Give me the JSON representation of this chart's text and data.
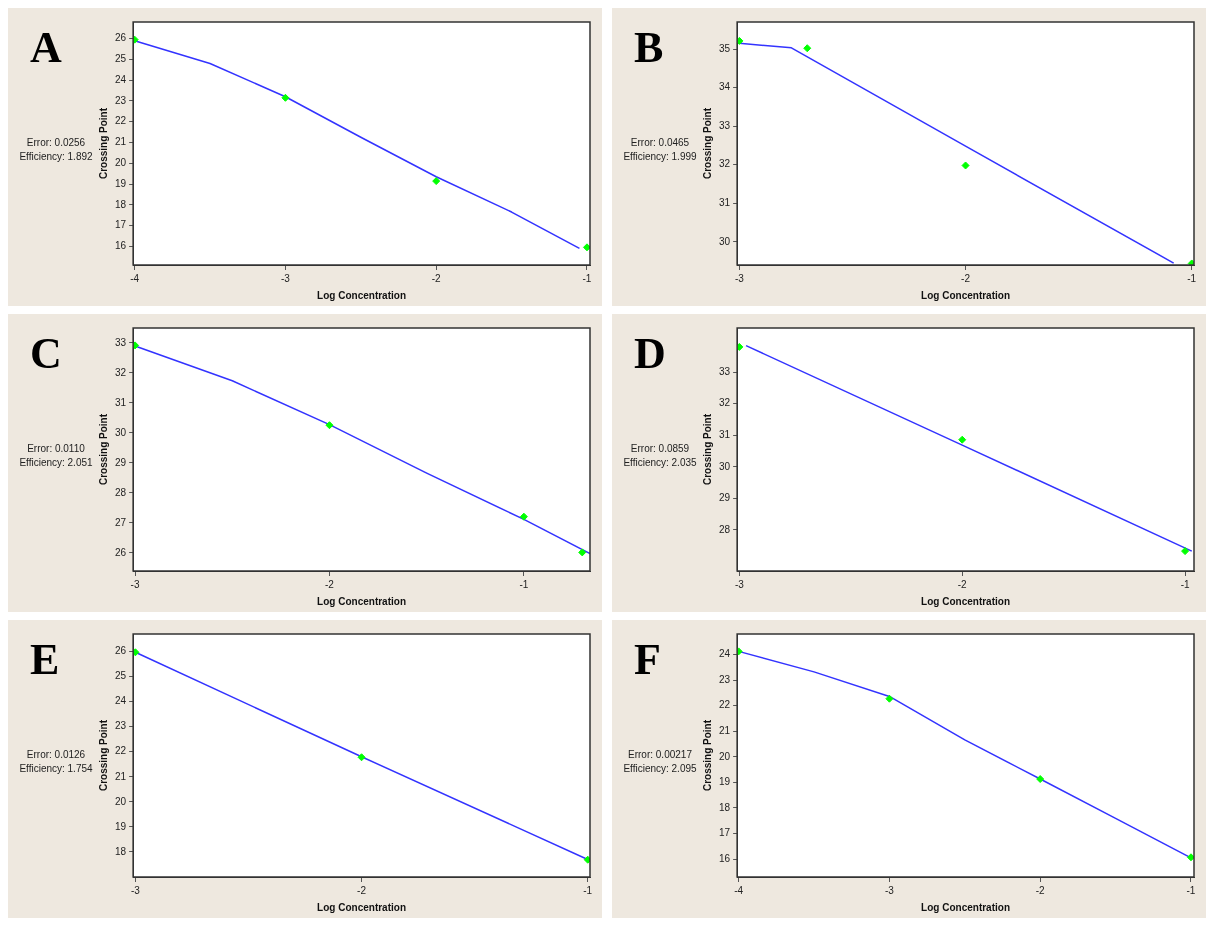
{
  "chart_data": [
    {
      "type": "scatter",
      "title": "A",
      "xlabel": "Log Concentration",
      "ylabel": "Crossing Point",
      "annotations": [
        "Error: 0.0256",
        "Efficiency: 1.892"
      ],
      "xlim": [
        -4.01,
        -0.98
      ],
      "xticks": [
        -4,
        -3,
        -2,
        -1
      ],
      "ylim": [
        15.1,
        26.8
      ],
      "yticks": [
        16,
        17,
        18,
        19,
        20,
        21,
        22,
        23,
        24,
        25,
        26
      ],
      "grid": false,
      "legend": false,
      "series": [
        {
          "type": "line",
          "color": "#3333ff",
          "marker": "none",
          "x": [
            -4,
            -3.5,
            -3,
            -2.5,
            -2,
            -1.5,
            -1.05
          ],
          "values": [
            25.9,
            24.8,
            23.2,
            21.25,
            19.35,
            17.65,
            15.9
          ]
        },
        {
          "type": "scatter",
          "color": "#00ff00",
          "marker": "diamond",
          "x": [
            -4,
            -3,
            -2,
            -1
          ],
          "values": [
            25.95,
            23.15,
            19.14,
            15.95
          ]
        }
      ]
    },
    {
      "type": "scatter",
      "title": "B",
      "xlabel": "Log Concentration",
      "ylabel": "Crossing Point",
      "annotations": [
        "Error: 0.0465",
        "Efficiency: 1.999"
      ],
      "xlim": [
        -3.01,
        -0.99
      ],
      "xticks": [
        -3,
        -2,
        -1
      ],
      "ylim": [
        29.4,
        35.7
      ],
      "yticks": [
        30,
        31,
        32,
        33,
        34,
        35
      ],
      "grid": false,
      "legend": false,
      "series": [
        {
          "type": "line",
          "color": "#3333ff",
          "marker": "none",
          "x": [
            -3,
            -2.77,
            -2,
            -1.08
          ],
          "values": [
            35.15,
            35.03,
            32.48,
            29.45
          ]
        },
        {
          "type": "scatter",
          "color": "#00ff00",
          "marker": "diamond",
          "x": [
            -3,
            -2.7,
            -2,
            -1
          ],
          "values": [
            35.21,
            35.02,
            31.98,
            29.44
          ]
        }
      ]
    },
    {
      "type": "scatter",
      "title": "C",
      "xlabel": "Log Concentration",
      "ylabel": "Crossing Point",
      "annotations": [
        "Error: 0.0110",
        "Efficiency: 2.051"
      ],
      "xlim": [
        -3.01,
        -0.66
      ],
      "xticks": [
        -3,
        -2,
        -1
      ],
      "ylim": [
        25.4,
        33.5
      ],
      "yticks": [
        26,
        27,
        28,
        29,
        30,
        31,
        32,
        33
      ],
      "grid": false,
      "legend": false,
      "series": [
        {
          "type": "line",
          "color": "#3333ff",
          "marker": "none",
          "x": [
            -3,
            -2.5,
            -2,
            -1.5,
            -1,
            -0.66
          ],
          "values": [
            32.9,
            31.74,
            30.28,
            28.66,
            27.12,
            25.98
          ]
        },
        {
          "type": "scatter",
          "color": "#00ff00",
          "marker": "diamond",
          "x": [
            -3,
            -2,
            -1,
            -0.7
          ],
          "values": [
            32.92,
            30.26,
            27.21,
            26.02
          ]
        }
      ]
    },
    {
      "type": "scatter",
      "title": "D",
      "xlabel": "Log Concentration",
      "ylabel": "Crossing Point",
      "annotations": [
        "Error: 0.0859",
        "Efficiency: 2.035"
      ],
      "xlim": [
        -3.01,
        -0.96
      ],
      "xticks": [
        -3,
        -2,
        -1
      ],
      "ylim": [
        26.7,
        34.4
      ],
      "yticks": [
        28,
        29,
        30,
        31,
        32,
        33
      ],
      "grid": false,
      "legend": false,
      "series": [
        {
          "type": "line",
          "color": "#3333ff",
          "marker": "none",
          "x": [
            -2.97,
            -2,
            -0.97
          ],
          "values": [
            33.84,
            30.69,
            27.33
          ]
        },
        {
          "type": "scatter",
          "color": "#00ff00",
          "marker": "diamond",
          "x": [
            -3,
            -2,
            -1
          ],
          "values": [
            33.8,
            30.86,
            27.33
          ]
        }
      ]
    },
    {
      "type": "scatter",
      "title": "E",
      "xlabel": "Log Concentration",
      "ylabel": "Crossing Point",
      "annotations": [
        "Error: 0.0126",
        "Efficiency: 1.754"
      ],
      "xlim": [
        -3.01,
        -0.99
      ],
      "xticks": [
        -3,
        -2,
        -1
      ],
      "ylim": [
        17,
        26.7
      ],
      "yticks": [
        18,
        19,
        20,
        21,
        22,
        23,
        24,
        25,
        26
      ],
      "grid": false,
      "legend": false,
      "series": [
        {
          "type": "line",
          "color": "#3333ff",
          "marker": "none",
          "x": [
            -3,
            -2,
            -1
          ],
          "values": [
            25.97,
            21.8,
            17.7
          ]
        },
        {
          "type": "scatter",
          "color": "#00ff00",
          "marker": "diamond",
          "x": [
            -3,
            -2,
            -1
          ],
          "values": [
            25.97,
            21.78,
            17.69
          ]
        }
      ]
    },
    {
      "type": "scatter",
      "title": "F",
      "xlabel": "Log Concentration",
      "ylabel": "Crossing Point",
      "annotations": [
        "Error: 0.00217",
        "Efficiency: 2.095"
      ],
      "xlim": [
        -4.01,
        -0.98
      ],
      "xticks": [
        -4,
        -3,
        -2,
        -1
      ],
      "ylim": [
        15.3,
        24.8
      ],
      "yticks": [
        16,
        17,
        18,
        19,
        20,
        21,
        22,
        23,
        24
      ],
      "grid": false,
      "legend": false,
      "series": [
        {
          "type": "line",
          "color": "#3333ff",
          "marker": "none",
          "x": [
            -4,
            -3.5,
            -3,
            -2.5,
            -2,
            -1.5,
            -1
          ],
          "values": [
            24.12,
            23.32,
            22.36,
            20.66,
            19.13,
            17.59,
            16.05
          ]
        },
        {
          "type": "scatter",
          "color": "#00ff00",
          "marker": "diamond",
          "x": [
            -4,
            -3,
            -2,
            -1
          ],
          "values": [
            24.12,
            22.27,
            19.13,
            16.07
          ]
        }
      ]
    }
  ]
}
